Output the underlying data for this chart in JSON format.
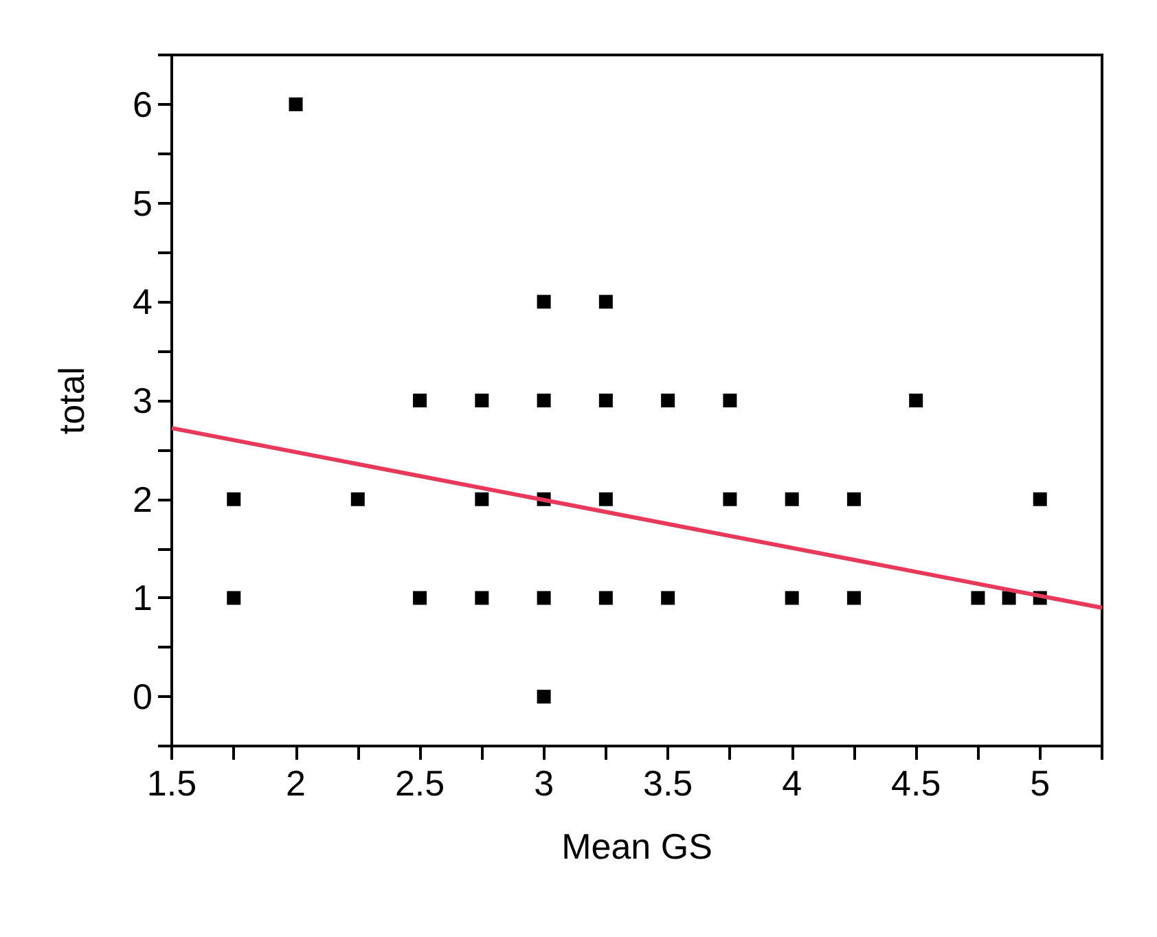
{
  "chart_data": {
    "type": "scatter",
    "xlabel": "Mean GS",
    "ylabel": "total",
    "xlim": [
      1.5,
      5.25
    ],
    "ylim": [
      -0.5,
      6.5
    ],
    "xticks": [
      1.5,
      {
        "value": 1.75,
        "label": null
      },
      2,
      {
        "value": 2.25,
        "label": null
      },
      2.5,
      {
        "value": 2.75,
        "label": null
      },
      3,
      {
        "value": 3.25,
        "label": null
      },
      3.5,
      {
        "value": 3.75,
        "label": null
      },
      4,
      {
        "value": 4.25,
        "label": null
      },
      4.5,
      {
        "value": 4.75,
        "label": null
      },
      5,
      {
        "value": 5.25,
        "label": null
      }
    ],
    "yticks": [
      {
        "value": -0.5,
        "label": null
      },
      0,
      {
        "value": 0.5,
        "label": null
      },
      1,
      {
        "value": 1.5,
        "label": null
      },
      2,
      {
        "value": 2.5,
        "label": null
      },
      3,
      {
        "value": 3.5,
        "label": null
      },
      4,
      {
        "value": 4.5,
        "label": null
      },
      5,
      {
        "value": 5.5,
        "label": null
      },
      6,
      {
        "value": 6.5,
        "label": null
      }
    ],
    "grid": false,
    "series": [
      {
        "type": "scatter",
        "marker": "square",
        "color": "#000000",
        "x": [
          1.75,
          1.75,
          2,
          2.25,
          2.5,
          2.5,
          2.75,
          2.75,
          2.75,
          3,
          3,
          3,
          3,
          3,
          3.25,
          3.25,
          3.25,
          3.25,
          3.5,
          3.5,
          3.75,
          3.75,
          4,
          4,
          4.25,
          4.25,
          4.5,
          4.75,
          4.875,
          5,
          5
        ],
        "values": [
          2,
          1,
          6,
          2,
          3,
          1,
          3,
          2,
          1,
          4,
          3,
          2,
          1,
          0,
          4,
          3,
          2,
          1,
          3,
          1,
          3,
          2,
          2,
          1,
          2,
          1,
          3,
          1,
          1,
          2,
          1
        ]
      },
      {
        "type": "line",
        "marker": "none",
        "color": "#e8395a",
        "x": [
          1.5,
          5.25
        ],
        "values": [
          2.72,
          0.9
        ]
      }
    ]
  }
}
